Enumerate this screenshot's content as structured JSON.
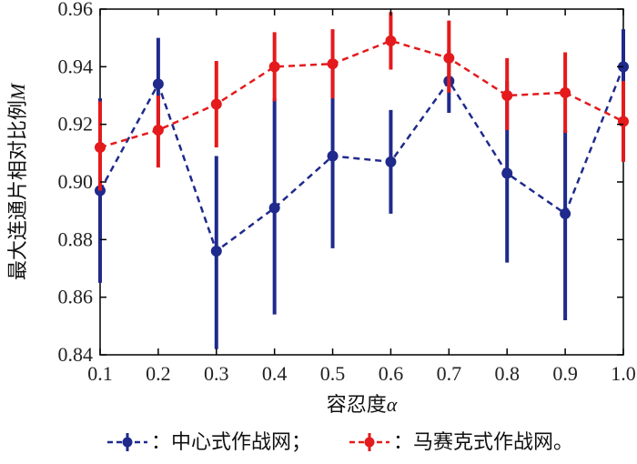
{
  "chart_data": {
    "type": "line",
    "x": [
      0.1,
      0.2,
      0.3,
      0.4,
      0.5,
      0.6,
      0.7,
      0.8,
      0.9,
      1.0
    ],
    "x_tick_labels": [
      "0.1",
      "0.2",
      "0.3",
      "0.4",
      "0.5",
      "0.6",
      "0.7",
      "0.8",
      "0.9",
      "1.0"
    ],
    "y_tick_labels": [
      "0.84",
      "0.86",
      "0.88",
      "0.90",
      "0.92",
      "0.94",
      "0.96"
    ],
    "y_ticks": [
      0.84,
      0.86,
      0.88,
      0.9,
      0.92,
      0.94,
      0.96
    ],
    "xlim": [
      0.1,
      1.0
    ],
    "ylim": [
      0.84,
      0.96
    ],
    "xlabel": "容忍度",
    "xlabel_symbol": "α",
    "ylabel": "最大连通片相对比例",
    "ylabel_symbol": "M",
    "grid": false,
    "series": [
      {
        "name": "中心式作战网",
        "color": "#1f2a8c",
        "values": [
          0.897,
          0.934,
          0.876,
          0.891,
          0.909,
          0.907,
          0.935,
          0.903,
          0.889,
          0.94
        ],
        "err_low": [
          0.865,
          0.92,
          0.842,
          0.854,
          0.877,
          0.889,
          0.924,
          0.872,
          0.852,
          0.908
        ],
        "err_high": [
          0.929,
          0.95,
          0.909,
          0.929,
          0.941,
          0.925,
          0.946,
          0.935,
          0.918,
          0.953
        ]
      },
      {
        "name": "马赛克式作战网",
        "color": "#e41a1c",
        "values": [
          0.912,
          0.918,
          0.927,
          0.94,
          0.941,
          0.949,
          0.943,
          0.93,
          0.931,
          0.921
        ],
        "err_low": [
          0.897,
          0.905,
          0.912,
          0.928,
          0.929,
          0.939,
          0.931,
          0.918,
          0.917,
          0.907
        ],
        "err_high": [
          0.928,
          0.93,
          0.942,
          0.952,
          0.953,
          0.959,
          0.956,
          0.943,
          0.945,
          0.935
        ]
      }
    ],
    "legend": {
      "placement": "bottom",
      "entries": [
        {
          "label": "：中心式作战网；",
          "color": "#1f2a8c"
        },
        {
          "label": "：马赛克式作战网。",
          "color": "#e41a1c"
        }
      ]
    }
  }
}
